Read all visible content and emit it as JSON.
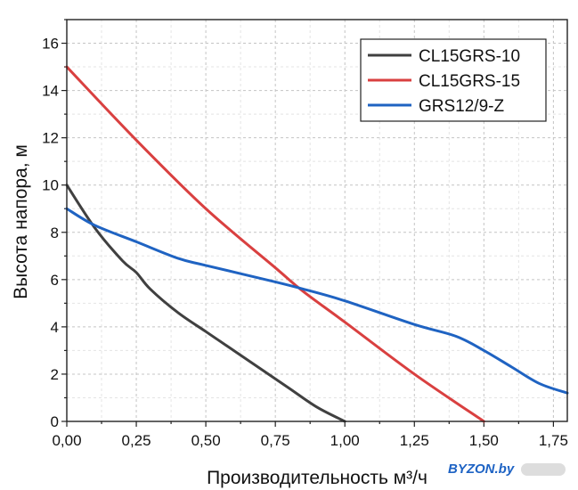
{
  "chart_data": {
    "type": "line",
    "xlabel": "Производительность м³/ч",
    "ylabel": "Высота напора, м",
    "xlim": [
      0,
      1.8
    ],
    "ylim": [
      0,
      17
    ],
    "x_ticks": [
      0,
      0.25,
      0.5,
      0.75,
      1.0,
      1.25,
      1.5,
      1.75
    ],
    "x_tick_labels": [
      "0,00",
      "0,25",
      "0,50",
      "0,75",
      "1,00",
      "1,25",
      "1,50",
      "1,75"
    ],
    "y_ticks": [
      0,
      2,
      4,
      6,
      8,
      10,
      12,
      14,
      16
    ],
    "y_tick_labels": [
      "0",
      "2",
      "4",
      "6",
      "8",
      "10",
      "12",
      "14",
      "16"
    ],
    "grid": true,
    "legend_position": "top-right",
    "series": [
      {
        "name": "CL15GRS-10",
        "color": "#404040",
        "points": [
          [
            0,
            10.0
          ],
          [
            0.1,
            8.2
          ],
          [
            0.2,
            6.8
          ],
          [
            0.25,
            6.3
          ],
          [
            0.3,
            5.6
          ],
          [
            0.4,
            4.6
          ],
          [
            0.5,
            3.8
          ],
          [
            0.6,
            3.0
          ],
          [
            0.7,
            2.2
          ],
          [
            0.8,
            1.4
          ],
          [
            0.9,
            0.6
          ],
          [
            1.0,
            0.0
          ]
        ]
      },
      {
        "name": "CL15GRS-15",
        "color": "#d94040",
        "points": [
          [
            0,
            15.0
          ],
          [
            0.25,
            11.9
          ],
          [
            0.5,
            9.0
          ],
          [
            0.75,
            6.5
          ],
          [
            0.85,
            5.5
          ],
          [
            1.0,
            4.2
          ],
          [
            1.25,
            2.0
          ],
          [
            1.5,
            0.0
          ]
        ]
      },
      {
        "name": "GRS12/9-Z",
        "color": "#1f63c2",
        "points": [
          [
            0,
            9.0
          ],
          [
            0.1,
            8.3
          ],
          [
            0.25,
            7.6
          ],
          [
            0.4,
            6.9
          ],
          [
            0.5,
            6.6
          ],
          [
            0.75,
            5.9
          ],
          [
            0.85,
            5.6
          ],
          [
            1.0,
            5.1
          ],
          [
            1.25,
            4.1
          ],
          [
            1.4,
            3.6
          ],
          [
            1.5,
            3.0
          ],
          [
            1.6,
            2.3
          ],
          [
            1.7,
            1.6
          ],
          [
            1.8,
            1.2
          ]
        ]
      }
    ]
  },
  "watermark": "BYZON.by"
}
